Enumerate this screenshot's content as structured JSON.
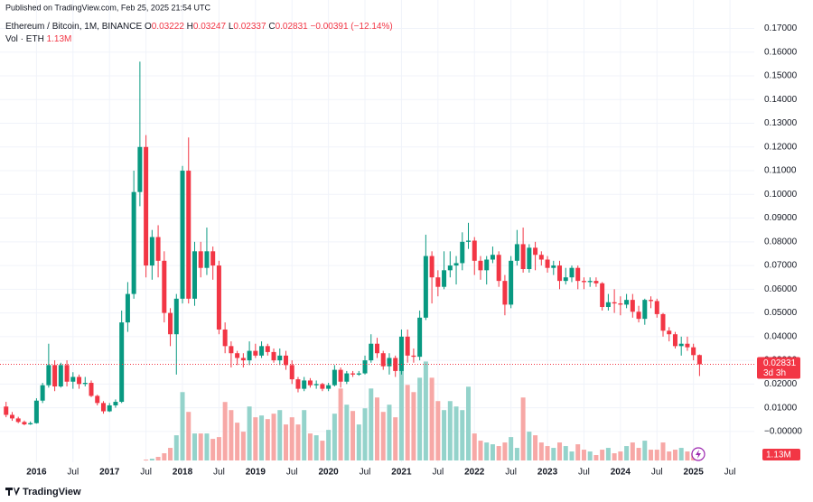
{
  "header": "Published on TradingView.com, Feb 25, 2025 21:54 UTC",
  "footer": "TradingView",
  "chart_data": {
    "type": "candlestick",
    "legend": {
      "symbol": "Ethereum / Bitcoin, 1M, BINANCE",
      "ohlc": [
        {
          "key": "O",
          "value": "0.03222"
        },
        {
          "key": "H",
          "value": "0.03247"
        },
        {
          "key": "L",
          "value": "0.02337"
        },
        {
          "key": "C",
          "value": "0.02831"
        }
      ],
      "change": "−0.00391 (−12.14%)",
      "volume_name": "Vol · ETH",
      "volume_value": "1.13M"
    },
    "countdown": "3d 3h",
    "x": [
      "2015-08",
      "2015-09",
      "2015-10",
      "2015-11",
      "2015-12",
      "2016-01",
      "2016-02",
      "2016-03",
      "2016-04",
      "2016-05",
      "2016-06",
      "2016-07",
      "2016-08",
      "2016-09",
      "2016-10",
      "2016-11",
      "2016-12",
      "2017-01",
      "2017-02",
      "2017-03",
      "2017-04",
      "2017-05",
      "2017-06",
      "2017-07",
      "2017-08",
      "2017-09",
      "2017-10",
      "2017-11",
      "2017-12",
      "2018-01",
      "2018-02",
      "2018-03",
      "2018-04",
      "2018-05",
      "2018-06",
      "2018-07",
      "2018-08",
      "2018-09",
      "2018-10",
      "2018-11",
      "2018-12",
      "2019-01",
      "2019-02",
      "2019-03",
      "2019-04",
      "2019-05",
      "2019-06",
      "2019-07",
      "2019-08",
      "2019-09",
      "2019-10",
      "2019-11",
      "2019-12",
      "2020-01",
      "2020-02",
      "2020-03",
      "2020-04",
      "2020-05",
      "2020-06",
      "2020-07",
      "2020-08",
      "2020-09",
      "2020-10",
      "2020-11",
      "2020-12",
      "2021-01",
      "2021-02",
      "2021-03",
      "2021-04",
      "2021-05",
      "2021-06",
      "2021-07",
      "2021-08",
      "2021-09",
      "2021-10",
      "2021-11",
      "2021-12",
      "2022-01",
      "2022-02",
      "2022-03",
      "2022-04",
      "2022-05",
      "2022-06",
      "2022-07",
      "2022-08",
      "2022-09",
      "2022-10",
      "2022-11",
      "2022-12",
      "2023-01",
      "2023-02",
      "2023-03",
      "2023-04",
      "2023-05",
      "2023-06",
      "2023-07",
      "2023-08",
      "2023-09",
      "2023-10",
      "2023-11",
      "2023-12",
      "2024-01",
      "2024-02",
      "2024-03",
      "2024-04",
      "2024-05",
      "2024-06",
      "2024-07",
      "2024-08",
      "2024-09",
      "2024-10",
      "2024-11",
      "2024-12",
      "2025-01",
      "2025-02"
    ],
    "open": [
      0.0105,
      0.007,
      0.0055,
      0.004,
      0.003,
      0.0035,
      0.013,
      0.0195,
      0.028,
      0.019,
      0.028,
      0.021,
      0.023,
      0.02,
      0.0205,
      0.015,
      0.012,
      0.0085,
      0.011,
      0.0125,
      0.046,
      0.058,
      0.101,
      0.12,
      0.07,
      0.082,
      0.072,
      0.05,
      0.041,
      0.056,
      0.11,
      0.056,
      0.076,
      0.069,
      0.076,
      0.07,
      0.043,
      0.036,
      0.033,
      0.031,
      0.03,
      0.034,
      0.032,
      0.036,
      0.0335,
      0.03,
      0.032,
      0.028,
      0.022,
      0.018,
      0.0215,
      0.0195,
      0.02,
      0.018,
      0.0195,
      0.026,
      0.021,
      0.0245,
      0.024,
      0.0245,
      0.03,
      0.037,
      0.033,
      0.0275,
      0.031,
      0.0255,
      0.04,
      0.032,
      0.0315,
      0.048,
      0.074,
      0.065,
      0.061,
      0.068,
      0.07,
      0.071,
      0.08,
      0.0805,
      0.072,
      0.068,
      0.0725,
      0.0745,
      0.0635,
      0.0535,
      0.072,
      0.079,
      0.0685,
      0.0775,
      0.0745,
      0.0725,
      0.069,
      0.07,
      0.0635,
      0.065,
      0.069,
      0.0635,
      0.063,
      0.0635,
      0.0625,
      0.0525,
      0.0545,
      0.054,
      0.0535,
      0.0555,
      0.0505,
      0.0475,
      0.0555,
      0.055,
      0.0495,
      0.0425,
      0.041,
      0.036,
      0.037,
      0.0355,
      0.03222
    ],
    "high": [
      0.0125,
      0.0082,
      0.0062,
      0.0046,
      0.0042,
      0.014,
      0.0205,
      0.037,
      0.03,
      0.029,
      0.03,
      0.025,
      0.024,
      0.023,
      0.0215,
      0.0155,
      0.0128,
      0.012,
      0.0135,
      0.051,
      0.063,
      0.11,
      0.156,
      0.125,
      0.085,
      0.087,
      0.076,
      0.052,
      0.058,
      0.112,
      0.124,
      0.08,
      0.08,
      0.086,
      0.078,
      0.072,
      0.046,
      0.038,
      0.034,
      0.033,
      0.038,
      0.037,
      0.038,
      0.037,
      0.035,
      0.035,
      0.034,
      0.03,
      0.023,
      0.023,
      0.0225,
      0.0215,
      0.0205,
      0.0205,
      0.028,
      0.027,
      0.0255,
      0.0255,
      0.0255,
      0.032,
      0.041,
      0.0395,
      0.034,
      0.033,
      0.032,
      0.043,
      0.043,
      0.035,
      0.051,
      0.083,
      0.076,
      0.068,
      0.076,
      0.076,
      0.074,
      0.084,
      0.088,
      0.082,
      0.074,
      0.074,
      0.078,
      0.076,
      0.066,
      0.074,
      0.085,
      0.086,
      0.079,
      0.08,
      0.076,
      0.074,
      0.072,
      0.072,
      0.069,
      0.07,
      0.07,
      0.065,
      0.065,
      0.065,
      0.063,
      0.058,
      0.06,
      0.057,
      0.058,
      0.058,
      0.053,
      0.056,
      0.057,
      0.056,
      0.05,
      0.044,
      0.042,
      0.04,
      0.04,
      0.037,
      0.03247
    ],
    "low": [
      0.006,
      0.0045,
      0.0035,
      0.0026,
      0.0028,
      0.0033,
      0.012,
      0.0185,
      0.017,
      0.0185,
      0.019,
      0.018,
      0.018,
      0.019,
      0.0145,
      0.011,
      0.0075,
      0.0082,
      0.01,
      0.012,
      0.042,
      0.056,
      0.095,
      0.065,
      0.064,
      0.065,
      0.046,
      0.036,
      0.024,
      0.054,
      0.054,
      0.053,
      0.065,
      0.066,
      0.064,
      0.041,
      0.033,
      0.027,
      0.028,
      0.027,
      0.028,
      0.031,
      0.031,
      0.032,
      0.029,
      0.028,
      0.026,
      0.02,
      0.0165,
      0.017,
      0.0185,
      0.018,
      0.017,
      0.017,
      0.019,
      0.0185,
      0.02,
      0.023,
      0.0235,
      0.024,
      0.029,
      0.031,
      0.026,
      0.024,
      0.023,
      0.024,
      0.029,
      0.029,
      0.03,
      0.047,
      0.054,
      0.057,
      0.06,
      0.065,
      0.062,
      0.068,
      0.077,
      0.066,
      0.064,
      0.062,
      0.071,
      0.061,
      0.049,
      0.052,
      0.07,
      0.067,
      0.067,
      0.068,
      0.07,
      0.067,
      0.066,
      0.06,
      0.062,
      0.063,
      0.06,
      0.06,
      0.061,
      0.061,
      0.051,
      0.051,
      0.05,
      0.049,
      0.052,
      0.048,
      0.046,
      0.045,
      0.052,
      0.048,
      0.04,
      0.038,
      0.035,
      0.032,
      0.034,
      0.03,
      0.02337
    ],
    "close": [
      0.007,
      0.0055,
      0.004,
      0.003,
      0.0035,
      0.013,
      0.0195,
      0.028,
      0.019,
      0.028,
      0.021,
      0.023,
      0.02,
      0.0205,
      0.015,
      0.012,
      0.0085,
      0.011,
      0.0125,
      0.046,
      0.058,
      0.101,
      0.12,
      0.07,
      0.082,
      0.072,
      0.05,
      0.041,
      0.056,
      0.11,
      0.056,
      0.076,
      0.069,
      0.076,
      0.07,
      0.043,
      0.036,
      0.033,
      0.031,
      0.03,
      0.034,
      0.032,
      0.036,
      0.0335,
      0.03,
      0.032,
      0.028,
      0.022,
      0.018,
      0.0215,
      0.0195,
      0.02,
      0.018,
      0.0195,
      0.026,
      0.021,
      0.0245,
      0.024,
      0.0245,
      0.03,
      0.037,
      0.033,
      0.0275,
      0.031,
      0.0255,
      0.04,
      0.032,
      0.0315,
      0.048,
      0.074,
      0.065,
      0.061,
      0.068,
      0.07,
      0.071,
      0.08,
      0.0805,
      0.072,
      0.068,
      0.0725,
      0.0745,
      0.0635,
      0.0535,
      0.072,
      0.079,
      0.0685,
      0.0775,
      0.0745,
      0.0725,
      0.069,
      0.07,
      0.0635,
      0.065,
      0.069,
      0.0635,
      0.063,
      0.0635,
      0.0625,
      0.0525,
      0.0545,
      0.054,
      0.0535,
      0.0555,
      0.0505,
      0.0475,
      0.0555,
      0.055,
      0.0495,
      0.0425,
      0.041,
      0.036,
      0.037,
      0.0355,
      0.0322,
      0.02831
    ],
    "volume": [
      null,
      null,
      null,
      null,
      null,
      null,
      null,
      null,
      null,
      null,
      null,
      null,
      null,
      null,
      null,
      null,
      null,
      null,
      null,
      null,
      null,
      null,
      null,
      94000,
      188000,
      376000,
      752000,
      1316000,
      2632000,
      7144000,
      5076000,
      2820000,
      2820000,
      2820000,
      2256000,
      2444000,
      6110000,
      5264000,
      3948000,
      3008000,
      5640000,
      4512000,
      4700000,
      4324000,
      4888000,
      5264000,
      3760000,
      4512000,
      3760000,
      5264000,
      2820000,
      2632000,
      2068000,
      3196000,
      4888000,
      7520000,
      5828000,
      5170000,
      3760000,
      5452000,
      7520000,
      6580000,
      5076000,
      5828000,
      4512000,
      9400000,
      7896000,
      7144000,
      8648000,
      10340000,
      8648000,
      6204000,
      5264000,
      6204000,
      5640000,
      5264000,
      7708000,
      2820000,
      2068000,
      1880000,
      1692000,
      1504000,
      1880000,
      2444000,
      1316000,
      6580000,
      3008000,
      2632000,
      1880000,
      1504000,
      1316000,
      1880000,
      1504000,
      940000,
      1692000,
      1128000,
      940000,
      564000,
      1128000,
      1316000,
      752000,
      940000,
      1504000,
      1880000,
      1316000,
      2068000,
      1128000,
      1128000,
      1880000,
      940000,
      1128000,
      1316000,
      940000,
      752000,
      1130000
    ],
    "up_color": "#089981",
    "down_color": "#f23645",
    "volume_up_color": "#94d3cb",
    "volume_down_color": "#f7a8a6",
    "ylim": [
      -0.013,
      0.182
    ],
    "yticks": [
      {
        "value": 0,
        "label": "−0.00000"
      },
      {
        "value": 0.01,
        "label": "0.01000"
      },
      {
        "value": 0.02,
        "label": "0.02000"
      },
      {
        "value": 0.03,
        "label": "0.03000"
      },
      {
        "value": 0.04,
        "label": "0.04000"
      },
      {
        "value": 0.05,
        "label": "0.05000"
      },
      {
        "value": 0.06,
        "label": "0.06000"
      },
      {
        "value": 0.07,
        "label": "0.07000"
      },
      {
        "value": 0.08,
        "label": "0.08000"
      },
      {
        "value": 0.09,
        "label": "0.09000"
      },
      {
        "value": 0.1,
        "label": "0.10000"
      },
      {
        "value": 0.11,
        "label": "0.11000"
      },
      {
        "value": 0.12,
        "label": "0.12000"
      },
      {
        "value": 0.13,
        "label": "0.13000"
      },
      {
        "value": 0.14,
        "label": "0.14000"
      },
      {
        "value": 0.15,
        "label": "0.15000"
      },
      {
        "value": 0.16,
        "label": "0.16000"
      },
      {
        "value": 0.17,
        "label": "0.17000"
      }
    ],
    "xlim": [
      "2015-07",
      "2025-11"
    ],
    "xticks": [
      {
        "value": "2016-01",
        "label": "2016"
      },
      {
        "value": "2016-07",
        "label": "Jul"
      },
      {
        "value": "2017-01",
        "label": "2017"
      },
      {
        "value": "2017-07",
        "label": "Jul"
      },
      {
        "value": "2018-01",
        "label": "2018"
      },
      {
        "value": "2018-07",
        "label": "Jul"
      },
      {
        "value": "2019-01",
        "label": "2019"
      },
      {
        "value": "2019-07",
        "label": "Jul"
      },
      {
        "value": "2020-01",
        "label": "2020"
      },
      {
        "value": "2020-07",
        "label": "Jul"
      },
      {
        "value": "2021-01",
        "label": "2021"
      },
      {
        "value": "2021-07",
        "label": "Jul"
      },
      {
        "value": "2022-01",
        "label": "2022"
      },
      {
        "value": "2022-07",
        "label": "Jul"
      },
      {
        "value": "2023-01",
        "label": "2023"
      },
      {
        "value": "2023-07",
        "label": "Jul"
      },
      {
        "value": "2024-01",
        "label": "2024"
      },
      {
        "value": "2024-07",
        "label": "Jul"
      },
      {
        "value": "2025-01",
        "label": "2025"
      },
      {
        "value": "2025-07",
        "label": "Jul"
      }
    ],
    "volume_ylim": [
      0,
      15000000
    ],
    "grid": true,
    "last_price_line": true
  }
}
